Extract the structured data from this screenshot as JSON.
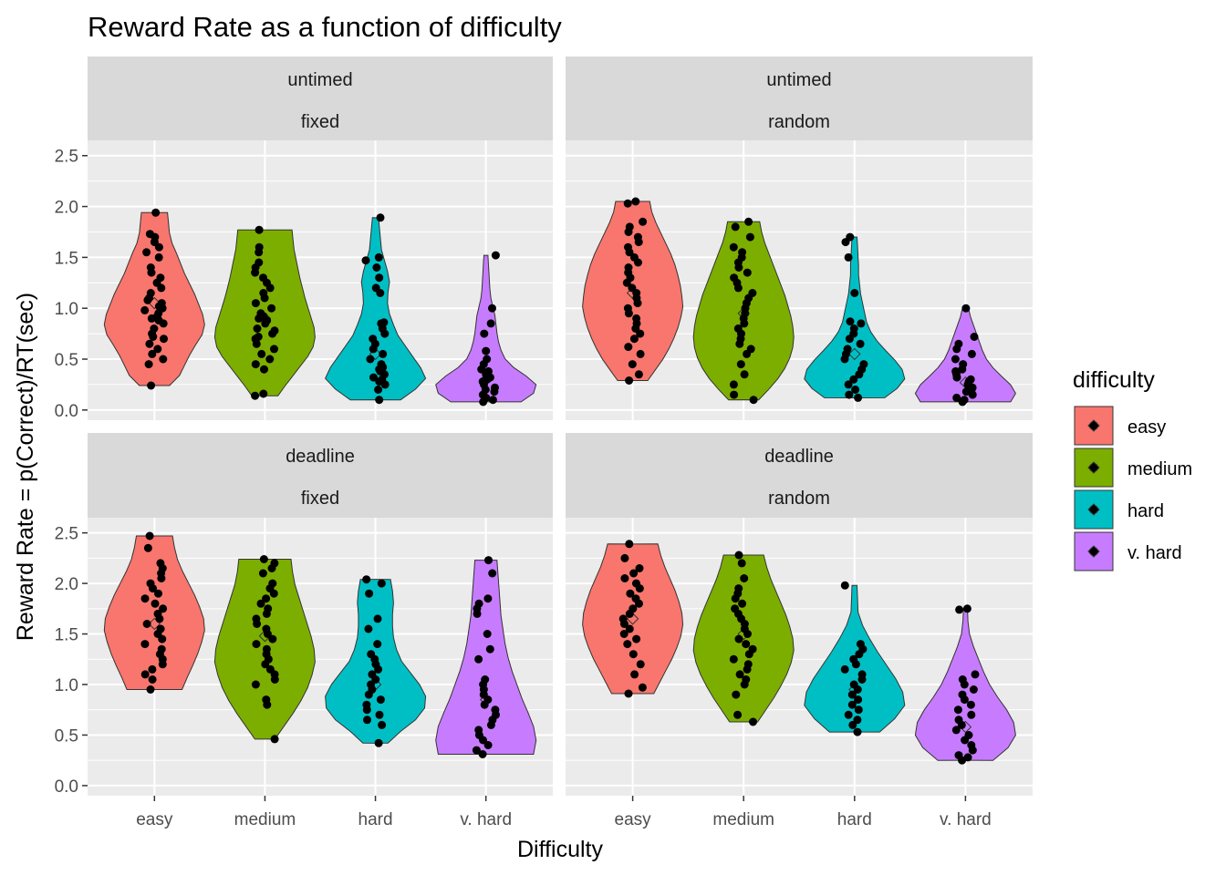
{
  "chart_data": {
    "type": "violin",
    "title": "Reward Rate as a function of difficulty",
    "xlabel": "Difficulty",
    "ylabel": "Reward Rate = p(Correct)/RT(sec)",
    "categories": [
      "easy",
      "medium",
      "hard",
      "v. hard"
    ],
    "y_ticks": [
      "0.0",
      "0.5",
      "1.0",
      "1.5",
      "2.0",
      "2.5"
    ],
    "ylim": [
      -0.1,
      2.65
    ],
    "legend": {
      "title": "difficulty",
      "placement": "right",
      "entries": [
        "easy",
        "medium",
        "hard",
        "v. hard"
      ]
    },
    "colors": {
      "easy": "#f8766d",
      "medium": "#7cae00",
      "hard": "#00bfc4",
      "v. hard": "#c77cff",
      "panel_bg": "#ebebeb",
      "strip_bg": "#d9d9d9",
      "grid": "#ffffff",
      "points": "#000000"
    },
    "panels": [
      {
        "strip_top": "untimed",
        "strip_bottom": "fixed",
        "groups": [
          {
            "category": "easy",
            "min": 0.24,
            "max": 1.94,
            "mean": 1.05,
            "widths": [
              0.3,
              0.5,
              0.6,
              0.7,
              0.82,
              0.95,
              1.0,
              0.96,
              0.88,
              0.8,
              0.7,
              0.6,
              0.52,
              0.44,
              0.35,
              0.3,
              0.28,
              0.26
            ],
            "points": [
              0.24,
              0.45,
              0.5,
              0.55,
              0.6,
              0.65,
              0.7,
              0.72,
              0.75,
              0.8,
              0.85,
              0.88,
              0.9,
              0.92,
              0.95,
              0.98,
              1.0,
              1.02,
              1.05,
              1.08,
              1.1,
              1.15,
              1.2,
              1.25,
              1.3,
              1.35,
              1.4,
              1.5,
              1.55,
              1.6,
              1.65,
              1.7,
              1.73,
              1.94
            ]
          },
          {
            "category": "medium",
            "min": 0.14,
            "max": 1.77,
            "mean": 0.9,
            "widths": [
              0.26,
              0.4,
              0.55,
              0.7,
              0.85,
              0.96,
              1.0,
              0.98,
              0.92,
              0.86,
              0.8,
              0.75,
              0.7,
              0.66,
              0.62,
              0.58,
              0.56,
              0.54
            ],
            "points": [
              0.14,
              0.16,
              0.4,
              0.45,
              0.5,
              0.55,
              0.6,
              0.65,
              0.7,
              0.72,
              0.75,
              0.78,
              0.8,
              0.85,
              0.88,
              0.9,
              0.92,
              0.95,
              1.0,
              1.05,
              1.1,
              1.15,
              1.2,
              1.25,
              1.3,
              1.35,
              1.4,
              1.45,
              1.55,
              1.6,
              1.77
            ]
          },
          {
            "category": "hard",
            "min": 0.1,
            "max": 1.89,
            "mean": 0.55,
            "widths": [
              0.5,
              0.8,
              1.0,
              0.9,
              0.75,
              0.6,
              0.45,
              0.36,
              0.28,
              0.24,
              0.25,
              0.28,
              0.24,
              0.18,
              0.12,
              0.1,
              0.08,
              0.06
            ],
            "points": [
              0.1,
              0.2,
              0.25,
              0.28,
              0.3,
              0.32,
              0.35,
              0.38,
              0.4,
              0.42,
              0.45,
              0.5,
              0.55,
              0.6,
              0.65,
              0.7,
              0.75,
              0.8,
              0.85,
              0.86,
              1.15,
              1.2,
              1.3,
              1.4,
              1.47,
              1.5,
              1.89
            ]
          },
          {
            "category": "v. hard",
            "min": 0.08,
            "max": 1.52,
            "mean": 0.3,
            "widths": [
              0.7,
              0.95,
              1.0,
              0.8,
              0.55,
              0.38,
              0.3,
              0.25,
              0.22,
              0.2,
              0.18,
              0.14,
              0.1,
              0.08,
              0.07,
              0.06,
              0.05,
              0.04
            ],
            "points": [
              0.08,
              0.1,
              0.12,
              0.15,
              0.18,
              0.2,
              0.22,
              0.25,
              0.28,
              0.3,
              0.32,
              0.35,
              0.38,
              0.4,
              0.45,
              0.5,
              0.58,
              0.75,
              0.85,
              1.0,
              1.52
            ]
          }
        ]
      },
      {
        "strip_top": "untimed",
        "strip_bottom": "random",
        "groups": [
          {
            "category": "easy",
            "min": 0.29,
            "max": 2.05,
            "mean": 1.15,
            "widths": [
              0.3,
              0.45,
              0.6,
              0.72,
              0.82,
              0.9,
              0.96,
              1.0,
              0.98,
              0.95,
              0.9,
              0.84,
              0.76,
              0.66,
              0.56,
              0.46,
              0.38,
              0.34
            ],
            "points": [
              0.29,
              0.35,
              0.45,
              0.55,
              0.62,
              0.7,
              0.75,
              0.8,
              0.85,
              0.9,
              0.95,
              1.0,
              1.05,
              1.1,
              1.15,
              1.2,
              1.25,
              1.3,
              1.35,
              1.4,
              1.45,
              1.5,
              1.55,
              1.6,
              1.65,
              1.7,
              1.75,
              1.8,
              1.85,
              2.03,
              2.05
            ]
          },
          {
            "category": "medium",
            "min": 0.1,
            "max": 1.85,
            "mean": 0.95,
            "widths": [
              0.3,
              0.5,
              0.68,
              0.82,
              0.92,
              0.98,
              1.0,
              0.98,
              0.94,
              0.88,
              0.82,
              0.74,
              0.66,
              0.58,
              0.5,
              0.42,
              0.36,
              0.32
            ],
            "points": [
              0.1,
              0.15,
              0.25,
              0.35,
              0.45,
              0.55,
              0.6,
              0.65,
              0.7,
              0.75,
              0.8,
              0.85,
              0.9,
              0.95,
              1.0,
              1.05,
              1.1,
              1.15,
              1.2,
              1.25,
              1.3,
              1.35,
              1.4,
              1.45,
              1.5,
              1.55,
              1.6,
              1.7,
              1.8,
              1.85
            ]
          },
          {
            "category": "hard",
            "min": 0.12,
            "max": 1.7,
            "mean": 0.55,
            "widths": [
              0.6,
              0.85,
              1.0,
              0.95,
              0.8,
              0.62,
              0.45,
              0.32,
              0.24,
              0.2,
              0.16,
              0.12,
              0.1,
              0.08,
              0.08,
              0.07,
              0.06,
              0.05
            ],
            "points": [
              0.12,
              0.15,
              0.2,
              0.25,
              0.3,
              0.35,
              0.4,
              0.45,
              0.5,
              0.55,
              0.6,
              0.65,
              0.7,
              0.75,
              0.8,
              0.85,
              0.87,
              1.15,
              1.5,
              1.65,
              1.7
            ]
          },
          {
            "category": "v. hard",
            "min": 0.08,
            "max": 1.0,
            "mean": 0.27,
            "widths": [
              0.9,
              1.0,
              0.9,
              0.72,
              0.55,
              0.42,
              0.34,
              0.28,
              0.22,
              0.16,
              0.1,
              0.06
            ],
            "points": [
              0.08,
              0.1,
              0.12,
              0.15,
              0.18,
              0.2,
              0.22,
              0.25,
              0.28,
              0.3,
              0.32,
              0.35,
              0.38,
              0.4,
              0.45,
              0.5,
              0.55,
              0.6,
              0.65,
              0.72,
              1.0
            ]
          }
        ]
      },
      {
        "strip_top": "deadline",
        "strip_bottom": "fixed",
        "groups": [
          {
            "category": "easy",
            "min": 0.95,
            "max": 2.47,
            "mean": 1.6,
            "widths": [
              0.55,
              0.65,
              0.76,
              0.86,
              0.94,
              1.0,
              0.98,
              0.9,
              0.8,
              0.68,
              0.56,
              0.46,
              0.4,
              0.36
            ],
            "points": [
              0.95,
              1.05,
              1.1,
              1.15,
              1.2,
              1.25,
              1.3,
              1.35,
              1.4,
              1.45,
              1.5,
              1.55,
              1.6,
              1.65,
              1.7,
              1.75,
              1.8,
              1.85,
              1.9,
              1.95,
              2.0,
              2.05,
              2.1,
              2.15,
              2.2,
              2.35,
              2.47
            ]
          },
          {
            "category": "medium",
            "min": 0.46,
            "max": 2.24,
            "mean": 1.48,
            "widths": [
              0.2,
              0.38,
              0.56,
              0.72,
              0.85,
              0.94,
              1.0,
              0.98,
              0.92,
              0.84,
              0.76,
              0.68,
              0.6,
              0.55,
              0.52
            ],
            "points": [
              0.46,
              0.8,
              0.85,
              1.0,
              1.05,
              1.1,
              1.15,
              1.2,
              1.25,
              1.3,
              1.35,
              1.4,
              1.45,
              1.5,
              1.55,
              1.6,
              1.65,
              1.7,
              1.75,
              1.8,
              1.85,
              1.9,
              1.95,
              2.0,
              2.1,
              2.15,
              2.2,
              2.24
            ]
          },
          {
            "category": "hard",
            "min": 0.42,
            "max": 2.04,
            "mean": 1.0,
            "widths": [
              0.25,
              0.5,
              0.8,
              0.98,
              1.0,
              0.88,
              0.7,
              0.52,
              0.42,
              0.36,
              0.34,
              0.34,
              0.36,
              0.34,
              0.3
            ],
            "points": [
              0.42,
              0.6,
              0.65,
              0.7,
              0.75,
              0.8,
              0.85,
              0.9,
              0.95,
              1.0,
              1.05,
              1.1,
              1.15,
              1.2,
              1.25,
              1.3,
              1.4,
              1.55,
              1.65,
              1.9,
              2.0,
              2.04
            ]
          },
          {
            "category": "v. hard",
            "min": 0.31,
            "max": 2.23,
            "mean": 0.85,
            "widths": [
              0.95,
              1.0,
              0.95,
              0.84,
              0.72,
              0.62,
              0.52,
              0.44,
              0.38,
              0.34,
              0.3,
              0.28,
              0.26,
              0.24,
              0.22
            ],
            "points": [
              0.31,
              0.35,
              0.4,
              0.45,
              0.5,
              0.55,
              0.6,
              0.65,
              0.7,
              0.75,
              0.8,
              0.85,
              0.9,
              0.95,
              1.0,
              1.05,
              1.25,
              1.35,
              1.5,
              1.7,
              1.75,
              1.8,
              1.85,
              2.1,
              2.23
            ]
          }
        ]
      },
      {
        "strip_top": "deadline",
        "strip_bottom": "random",
        "groups": [
          {
            "category": "easy",
            "min": 0.91,
            "max": 2.39,
            "mean": 1.65,
            "widths": [
              0.42,
              0.54,
              0.66,
              0.78,
              0.88,
              0.96,
              1.0,
              0.98,
              0.92,
              0.84,
              0.74,
              0.64,
              0.56,
              0.5
            ],
            "points": [
              0.91,
              0.97,
              1.1,
              1.2,
              1.3,
              1.4,
              1.45,
              1.5,
              1.55,
              1.6,
              1.65,
              1.7,
              1.75,
              1.8,
              1.85,
              1.9,
              1.95,
              2.0,
              2.05,
              2.1,
              2.15,
              2.25,
              2.39
            ]
          },
          {
            "category": "medium",
            "min": 0.63,
            "max": 2.28,
            "mean": 1.5,
            "widths": [
              0.28,
              0.44,
              0.6,
              0.74,
              0.86,
              0.95,
              1.0,
              0.98,
              0.92,
              0.84,
              0.74,
              0.64,
              0.54,
              0.46,
              0.4
            ],
            "points": [
              0.63,
              0.7,
              0.9,
              1.0,
              1.05,
              1.1,
              1.15,
              1.2,
              1.25,
              1.3,
              1.35,
              1.4,
              1.45,
              1.5,
              1.55,
              1.6,
              1.65,
              1.7,
              1.75,
              1.8,
              1.85,
              1.9,
              1.95,
              2.05,
              2.2,
              2.28
            ]
          },
          {
            "category": "hard",
            "min": 0.53,
            "max": 1.98,
            "mean": 0.95,
            "widths": [
              0.5,
              0.8,
              1.0,
              0.96,
              0.82,
              0.64,
              0.46,
              0.3,
              0.16,
              0.07,
              0.06,
              0.05
            ],
            "points": [
              0.53,
              0.6,
              0.65,
              0.7,
              0.75,
              0.8,
              0.85,
              0.9,
              0.95,
              1.0,
              1.05,
              1.1,
              1.15,
              1.2,
              1.25,
              1.3,
              1.35,
              1.4,
              1.98
            ]
          },
          {
            "category": "v. hard",
            "min": 0.25,
            "max": 1.75,
            "mean": 0.58,
            "widths": [
              0.55,
              0.85,
              1.0,
              0.96,
              0.82,
              0.64,
              0.48,
              0.36,
              0.26,
              0.16,
              0.08,
              0.05,
              0.04
            ],
            "points": [
              0.25,
              0.28,
              0.3,
              0.35,
              0.4,
              0.45,
              0.5,
              0.55,
              0.6,
              0.65,
              0.7,
              0.75,
              0.8,
              0.85,
              0.9,
              0.95,
              1.0,
              1.05,
              1.1,
              1.74,
              1.75
            ]
          }
        ]
      }
    ]
  }
}
